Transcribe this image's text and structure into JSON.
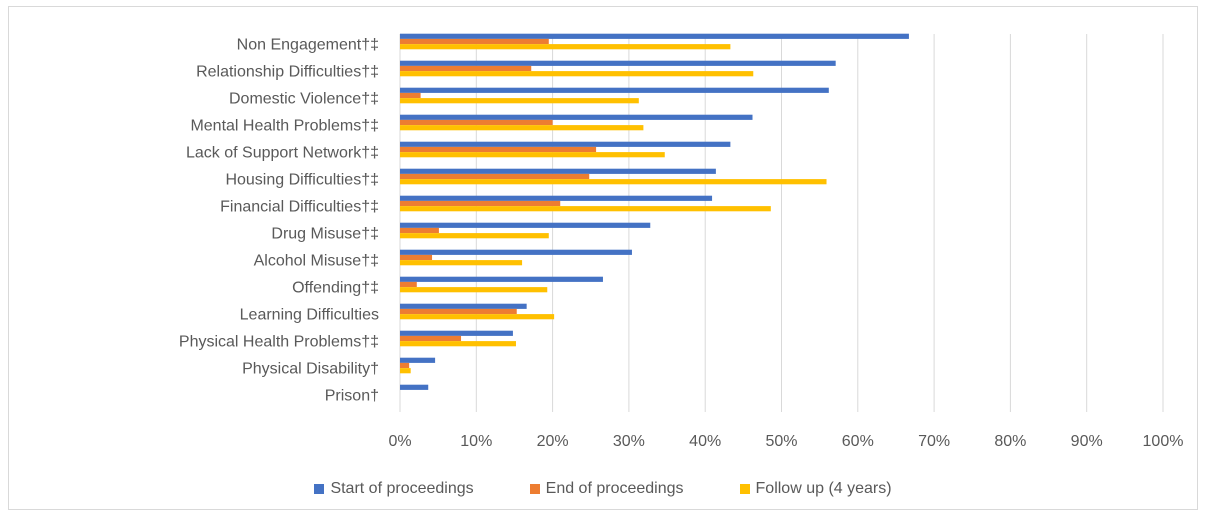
{
  "chart_data": {
    "type": "bar",
    "orientation": "horizontal",
    "categories": [
      "Non Engagement†‡",
      "Relationship Difficulties†‡",
      "Domestic Violence†‡",
      "Mental Health Problems†‡",
      "Lack of Support Network†‡",
      "Housing Difficulties†‡",
      "Financial Difficulties†‡",
      "Drug Misuse†‡",
      "Alcohol Misuse†‡",
      "Offending†‡",
      "Learning Difficulties",
      "Physical Health Problems†‡",
      "Physical Disability†",
      "Prison†"
    ],
    "series": [
      {
        "name": "Start of proceedings",
        "color": "#4472c4",
        "values": [
          66.7,
          57.1,
          56.2,
          46.2,
          43.3,
          41.4,
          40.9,
          32.8,
          30.4,
          26.6,
          16.6,
          14.8,
          4.6,
          3.7
        ]
      },
      {
        "name": "End of proceedings",
        "color": "#ed7d31",
        "values": [
          19.5,
          17.2,
          2.7,
          20.0,
          25.7,
          24.8,
          21.0,
          5.1,
          4.2,
          2.2,
          15.3,
          8.0,
          1.2,
          0.0
        ]
      },
      {
        "name": "Follow up (4 years)",
        "color": "#ffc000",
        "values": [
          43.3,
          46.3,
          31.3,
          31.9,
          34.7,
          55.9,
          48.6,
          19.5,
          16.0,
          19.3,
          20.2,
          15.2,
          1.4,
          0.0
        ]
      }
    ],
    "xlim": [
      0,
      100
    ],
    "xticks": [
      "0%",
      "10%",
      "20%",
      "30%",
      "40%",
      "50%",
      "60%",
      "70%",
      "80%",
      "90%",
      "100%"
    ],
    "grid": true,
    "legend_position": "bottom"
  }
}
